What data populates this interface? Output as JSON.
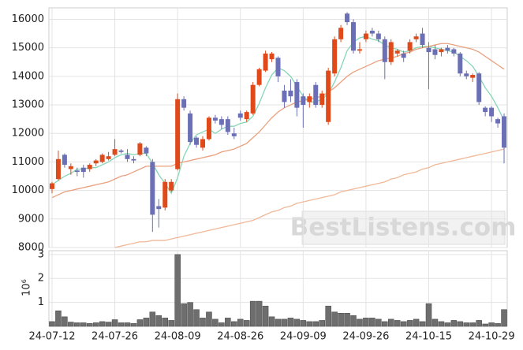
{
  "chart_data": {
    "type": "candlestick",
    "categories": [
      "24-07-12",
      null,
      null,
      null,
      null,
      null,
      null,
      null,
      null,
      null,
      "24-07-26",
      null,
      null,
      null,
      null,
      null,
      null,
      null,
      null,
      null,
      "24-08-09",
      null,
      null,
      null,
      null,
      null,
      null,
      null,
      null,
      null,
      "24-08-26",
      null,
      null,
      null,
      null,
      null,
      null,
      null,
      null,
      null,
      "24-09-09",
      null,
      null,
      null,
      null,
      null,
      null,
      null,
      null,
      null,
      "24-09-26",
      null,
      null,
      null,
      null,
      null,
      null,
      null,
      null,
      null,
      "24-10-15",
      null,
      null,
      null,
      null,
      null,
      null,
      null,
      null,
      null,
      "24-10-29",
      null,
      null
    ],
    "open": [
      10050,
      10400,
      11250,
      10750,
      10700,
      10800,
      10750,
      10950,
      11000,
      11100,
      11250,
      11400,
      11250,
      11100,
      11250,
      11500,
      11000,
      9450,
      9400,
      10000,
      10750,
      13200,
      12700,
      11850,
      11500,
      11800,
      12550,
      12500,
      12500,
      12000,
      12700,
      12500,
      12700,
      13700,
      14200,
      14600,
      14650,
      13500,
      13500,
      13800,
      13300,
      13100,
      13700,
      13000,
      12400,
      14100,
      15300,
      16200,
      15900,
      14900,
      15300,
      15600,
      15500,
      15300,
      14500,
      14800,
      14800,
      14900,
      15300,
      15500,
      15000,
      14950,
      14850,
      15000,
      14950,
      14800,
      14100,
      13950,
      14100,
      12900,
      12900,
      12500,
      12600
    ],
    "high": [
      10300,
      11400,
      11300,
      10950,
      10800,
      10900,
      10950,
      11100,
      11300,
      11350,
      11800,
      11450,
      11450,
      11200,
      11700,
      11550,
      11100,
      9700,
      10400,
      10400,
      13400,
      13300,
      12800,
      11900,
      11900,
      12600,
      12650,
      12600,
      12600,
      12200,
      12800,
      12800,
      13800,
      14300,
      14900,
      14850,
      14700,
      13700,
      13900,
      13900,
      13400,
      13400,
      13800,
      13500,
      14300,
      15400,
      15800,
      16250,
      16000,
      15200,
      15600,
      15700,
      15600,
      15400,
      15300,
      14950,
      14900,
      15300,
      15500,
      15700,
      15200,
      15100,
      15000,
      15100,
      15000,
      14850,
      14200,
      14100,
      14150,
      12950,
      12950,
      12550,
      12700
    ],
    "low": [
      9900,
      10350,
      10800,
      10550,
      10500,
      10450,
      10650,
      10850,
      10950,
      11050,
      11200,
      11300,
      11000,
      10950,
      11200,
      11200,
      8550,
      8700,
      9300,
      9950,
      10700,
      12800,
      11600,
      11500,
      11400,
      11750,
      12350,
      12150,
      11950,
      11800,
      12450,
      12400,
      12650,
      13650,
      14150,
      14500,
      13800,
      12900,
      13100,
      12600,
      12200,
      12900,
      12900,
      12900,
      12300,
      14000,
      15200,
      15800,
      14800,
      14800,
      15200,
      15400,
      15200,
      13900,
      14400,
      14700,
      14500,
      14800,
      15200,
      15000,
      13550,
      14600,
      14700,
      14800,
      14700,
      14000,
      13900,
      13800,
      13000,
      12600,
      12400,
      12200,
      10950
    ],
    "close": [
      10250,
      11100,
      10900,
      10850,
      10650,
      10650,
      10900,
      11050,
      11250,
      11200,
      11450,
      11350,
      11100,
      11050,
      11650,
      11300,
      9150,
      9350,
      10300,
      10300,
      13200,
      12900,
      11700,
      11600,
      11800,
      12550,
      12450,
      12300,
      12050,
      11900,
      12550,
      12750,
      13700,
      14250,
      14800,
      14800,
      14000,
      13100,
      13300,
      12900,
      13000,
      13300,
      13000,
      13400,
      14200,
      15300,
      15700,
      15900,
      14900,
      14950,
      15500,
      15500,
      15300,
      14500,
      15200,
      14900,
      14650,
      15200,
      15400,
      15100,
      14850,
      14750,
      14950,
      14900,
      14800,
      14100,
      14000,
      14050,
      13100,
      12750,
      12600,
      12350,
      11500
    ],
    "up_color": "#e04a1a",
    "down_color": "#6b6fb5",
    "series": [
      {
        "color": "#86d6b6",
        "values": [
          10200,
          10350,
          10500,
          10600,
          10750,
          10750,
          10800,
          10800,
          10900,
          11000,
          11150,
          11250,
          11300,
          11250,
          11300,
          11300,
          10950,
          10550,
          10250,
          9900,
          10450,
          11200,
          11650,
          11950,
          12050,
          12150,
          12000,
          12150,
          12250,
          12250,
          12350,
          12400,
          12600,
          13050,
          13600,
          14050,
          14300,
          14200,
          14000,
          13650,
          13300,
          13100,
          13100,
          13200,
          13400,
          13800,
          14300,
          14900,
          15200,
          15350,
          15400,
          15300,
          15250,
          15100,
          15000,
          14950,
          14850,
          14900,
          15000,
          15050,
          15050,
          15000,
          14950,
          14900,
          14850,
          14700,
          14550,
          14350,
          14000,
          13600,
          13300,
          12900,
          12450
        ]
      },
      {
        "color": "#eaa07e",
        "values": [
          9750,
          9850,
          9950,
          10000,
          10050,
          10100,
          10150,
          10200,
          10250,
          10300,
          10400,
          10500,
          10550,
          10650,
          10750,
          10850,
          10850,
          10850,
          10850,
          10850,
          10950,
          11000,
          11050,
          11100,
          11150,
          11200,
          11250,
          11350,
          11400,
          11450,
          11550,
          11650,
          11850,
          12050,
          12300,
          12550,
          12750,
          12900,
          13000,
          13100,
          13150,
          13200,
          13250,
          13300,
          13450,
          13600,
          13800,
          14000,
          14150,
          14250,
          14350,
          14450,
          14550,
          14600,
          14650,
          14700,
          14800,
          14850,
          14950,
          15000,
          15050,
          15100,
          15150,
          15150,
          15100,
          15050,
          15000,
          14950,
          14850,
          14700,
          14550,
          14400,
          14250
        ]
      },
      {
        "color": "#f0b898",
        "values": [
          null,
          null,
          null,
          null,
          null,
          null,
          null,
          null,
          null,
          null,
          8000,
          8050,
          8100,
          8150,
          8200,
          8200,
          8250,
          8250,
          8250,
          8300,
          8350,
          8400,
          8450,
          8500,
          8550,
          8600,
          8650,
          8700,
          8750,
          8800,
          8850,
          8900,
          8950,
          9050,
          9150,
          9250,
          9300,
          9400,
          9450,
          9550,
          9600,
          9650,
          9700,
          9750,
          9800,
          9850,
          9950,
          10000,
          10050,
          10100,
          10150,
          10200,
          10250,
          10300,
          10400,
          10450,
          10550,
          10600,
          10650,
          10750,
          10800,
          10900,
          10950,
          11000,
          11050,
          11100,
          11150,
          11200,
          11250,
          11300,
          11350,
          11400,
          11450
        ]
      }
    ],
    "volume": [
      0.2,
      0.65,
      0.4,
      0.18,
      0.15,
      0.15,
      0.12,
      0.15,
      0.2,
      0.18,
      0.28,
      0.15,
      0.15,
      0.12,
      0.28,
      0.35,
      0.6,
      0.45,
      0.35,
      0.25,
      3.0,
      0.95,
      1.0,
      0.7,
      0.35,
      0.6,
      0.3,
      0.15,
      0.35,
      0.2,
      0.3,
      0.25,
      1.05,
      1.05,
      0.85,
      0.4,
      0.3,
      0.3,
      0.35,
      0.3,
      0.25,
      0.2,
      0.2,
      0.25,
      0.85,
      0.6,
      0.55,
      0.55,
      0.45,
      0.3,
      0.35,
      0.35,
      0.3,
      0.2,
      0.3,
      0.25,
      0.2,
      0.25,
      0.3,
      0.2,
      0.95,
      0.3,
      0.2,
      0.15,
      0.25,
      0.2,
      0.15,
      0.15,
      0.25,
      0.1,
      0.15,
      0.12,
      0.7
    ],
    "volume_color": "#6e6e6e",
    "ylim": [
      8000,
      16400
    ],
    "yticks": [
      8000,
      9000,
      10000,
      11000,
      12000,
      13000,
      14000,
      15000,
      16000
    ],
    "y2lim": [
      0,
      3.16
    ],
    "y2ticks": [
      1,
      2,
      3
    ],
    "y2label": "10⁶",
    "grid": true,
    "watermark": "BestListens.com"
  }
}
